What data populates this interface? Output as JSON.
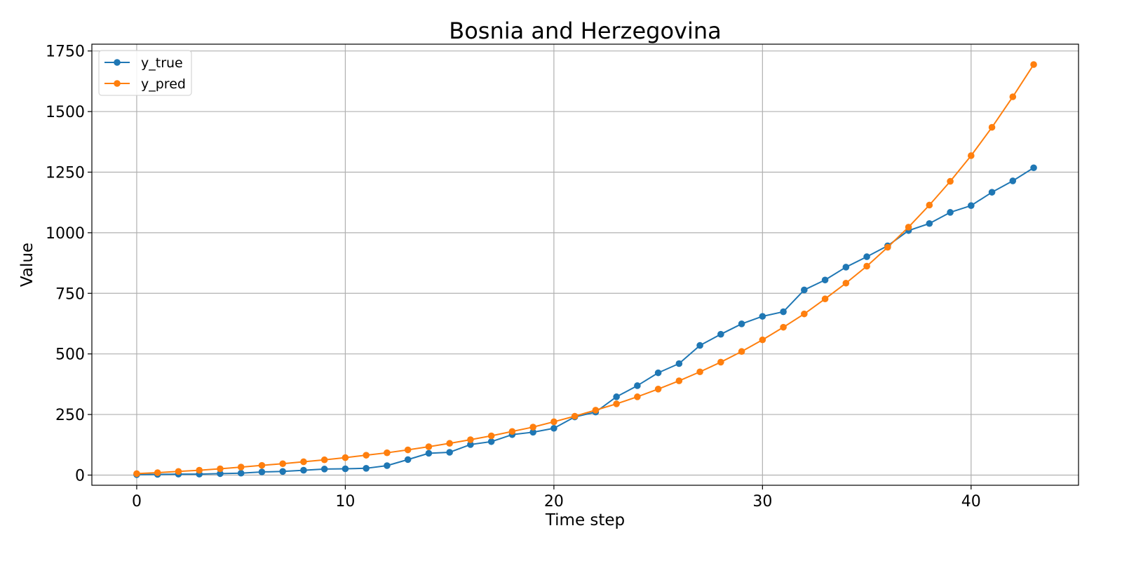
{
  "chart_data": {
    "type": "line",
    "title": "Bosnia and Herzegovina",
    "xlabel": "Time step",
    "ylabel": "Value",
    "xlim": [
      -2.15,
      45.15
    ],
    "ylim": [
      -42,
      1778
    ],
    "xticks": [
      0,
      10,
      20,
      30,
      40
    ],
    "yticks": [
      0,
      250,
      500,
      750,
      1000,
      1250,
      1500,
      1750
    ],
    "grid": true,
    "legend_position": "top-left",
    "x": [
      0,
      1,
      2,
      3,
      4,
      5,
      6,
      7,
      8,
      9,
      10,
      11,
      12,
      13,
      14,
      15,
      16,
      17,
      18,
      19,
      20,
      21,
      22,
      23,
      24,
      25,
      26,
      27,
      28,
      29,
      30,
      31,
      32,
      33,
      34,
      35,
      36,
      37,
      38,
      39,
      40,
      41,
      42,
      43
    ],
    "series": [
      {
        "name": "y_true",
        "color": "#1f77b4",
        "values": [
          2,
          3,
          4,
          4,
          6,
          8,
          13,
          15,
          20,
          25,
          26,
          28,
          39,
          64,
          90,
          94,
          126,
          138,
          167,
          177,
          193,
          240,
          260,
          323,
          369,
          422,
          460,
          535,
          581,
          624,
          655,
          674,
          764,
          805,
          858,
          901,
          946,
          1009,
          1038,
          1084,
          1112,
          1167,
          1214,
          1268
        ]
      },
      {
        "name": "y_pred",
        "color": "#ff7f0e",
        "values": [
          6,
          10,
          15,
          20,
          26,
          33,
          40,
          47,
          55,
          63,
          72,
          82,
          92,
          104,
          117,
          131,
          146,
          162,
          180,
          198,
          220,
          243,
          268,
          294,
          323,
          355,
          389,
          426,
          466,
          510,
          558,
          610,
          665,
          727,
          792,
          862,
          940,
          1023,
          1114,
          1212,
          1318,
          1435,
          1561,
          1694
        ]
      }
    ]
  }
}
